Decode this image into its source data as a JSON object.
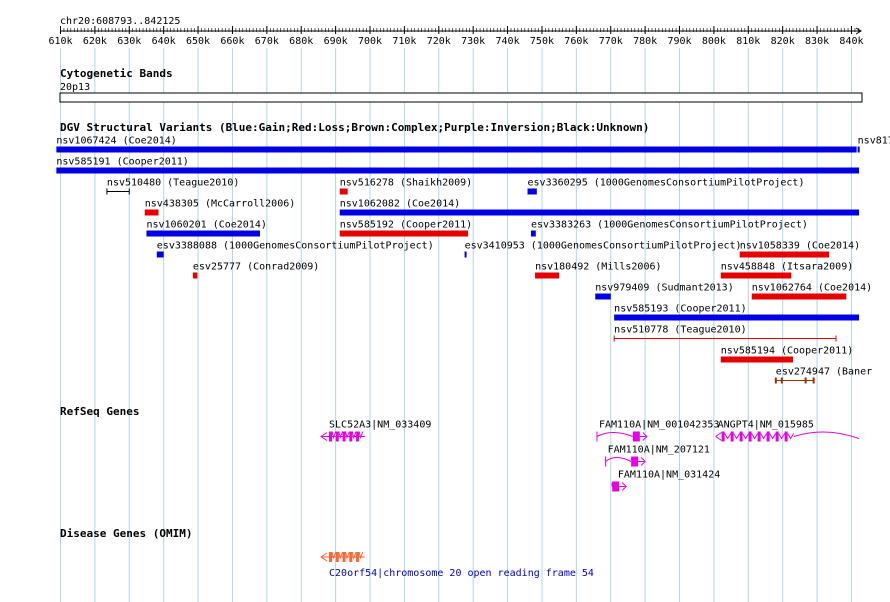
{
  "locus": "chr20:608793..842125",
  "ruler": {
    "ticks": [
      "610k",
      "620k",
      "630k",
      "640k",
      "650k",
      "660k",
      "670k",
      "680k",
      "690k",
      "700k",
      "710k",
      "720k",
      "730k",
      "740k",
      "750k",
      "760k",
      "770k",
      "780k",
      "790k",
      "800k",
      "810k",
      "820k",
      "830k",
      "840k"
    ]
  },
  "tracks": {
    "cytoband": {
      "title": "Cytogenetic Bands",
      "band": "20p13"
    },
    "dgv": {
      "title": "DGV Structural Variants (Blue:Gain;Red:Loss;Brown:Complex;Purple:Inversion;Black:Unknown)",
      "colors": {
        "gain": "#0000e6",
        "loss": "#e60000",
        "complex": "#993300",
        "unknown": "#000000"
      },
      "features": [
        {
          "label": "nsv1067424 (Coe2014)",
          "type": "gain",
          "start": 608.8,
          "end": 841.5,
          "row": 0
        },
        {
          "label": "nsv817",
          "type": "gain",
          "start": 841.8,
          "end": 842.2,
          "row": 0
        },
        {
          "label": "nsv585191 (Cooper2011)",
          "type": "gain",
          "start": 608.8,
          "end": 842.2,
          "row": 1
        },
        {
          "label": "nsv510480 (Teague2010)",
          "type": "unknown",
          "start": 623.5,
          "end": 630.0,
          "row": 2
        },
        {
          "label": "nsv516278 (Shaikh2009)",
          "type": "loss",
          "start": 691.2,
          "end": 693.5,
          "row": 2
        },
        {
          "label": "esv3360295 (1000GenomesConsortiumPilotProject)",
          "type": "gain",
          "start": 745.8,
          "end": 748.5,
          "row": 2
        },
        {
          "label": "nsv438305 (McCarroll2006)",
          "type": "loss",
          "start": 634.5,
          "end": 638.5,
          "row": 3
        },
        {
          "label": "nsv1062082 (Coe2014)",
          "type": "gain",
          "start": 691.2,
          "end": 842.2,
          "row": 3
        },
        {
          "label": "nsv1060201 (Coe2014)",
          "type": "gain",
          "start": 635.0,
          "end": 668.0,
          "row": 4
        },
        {
          "label": "nsv585192 (Cooper2011)",
          "type": "loss",
          "start": 691.2,
          "end": 728.5,
          "row": 4
        },
        {
          "label": "esv3383263 (1000GenomesConsortiumPilotProject)",
          "type": "gain",
          "start": 746.8,
          "end": 748.2,
          "row": 4
        },
        {
          "label": "esv3388088 (1000GenomesConsortiumPilotProject)",
          "type": "gain",
          "start": 638.0,
          "end": 640.0,
          "row": 5
        },
        {
          "label": "esv3410953 (1000GenomesConsortiumPilotProject)",
          "type": "gain",
          "start": 727.5,
          "end": 728.0,
          "row": 5
        },
        {
          "label": "nsv1058339 (Coe2014)",
          "type": "loss",
          "start": 807.5,
          "end": 833.5,
          "row": 5
        },
        {
          "label": "esv25777 (Conrad2009)",
          "type": "loss",
          "start": 648.5,
          "end": 649.8,
          "row": 6
        },
        {
          "label": "nsv180492 (Mills2006)",
          "type": "loss",
          "start": 748.0,
          "end": 755.0,
          "row": 6
        },
        {
          "label": "nsv458848 (Itsara2009)",
          "type": "loss",
          "start": 802.0,
          "end": 822.5,
          "row": 6
        },
        {
          "label": "nsv979409 (Sudmant2013)",
          "type": "gain",
          "start": 765.5,
          "end": 770.0,
          "row": 7
        },
        {
          "label": "nsv1062764 (Coe2014)",
          "type": "loss",
          "start": 811.0,
          "end": 838.5,
          "row": 7
        },
        {
          "label": "nsv585193 (Cooper2011)",
          "type": "gain",
          "start": 771.0,
          "end": 842.2,
          "row": 8
        },
        {
          "label": "nsv510778 (Teague2010)",
          "type": "loss_thin",
          "start": 771.0,
          "end": 835.5,
          "row": 9
        },
        {
          "label": "nsv585194 (Cooper2011)",
          "type": "loss",
          "start": 802.0,
          "end": 823.0,
          "row": 10
        },
        {
          "label": "esv274947 (Baner",
          "type": "complex",
          "start": 818.0,
          "end": 829.0,
          "row": 11
        }
      ]
    },
    "refseq": {
      "title": "RefSeq Genes",
      "color": "#e600e6",
      "genes": [
        {
          "label": "SLC52A3|NM_033409",
          "start": 687.5,
          "end": 698.5,
          "strand": "-",
          "row": 0
        },
        {
          "label": "FAM110A|NM_001042353",
          "start": 766.0,
          "end": 780.5,
          "strand": "+",
          "row": 0
        },
        {
          "label": "ANGPT4|NM_015985",
          "start": 800.5,
          "end": 842.2,
          "strand": "-",
          "row": 0
        },
        {
          "label": "FAM110A|NM_207121",
          "start": 768.5,
          "end": 780.0,
          "strand": "+",
          "row": 1
        },
        {
          "label": "FAM110A|NM_031424",
          "start": 771.5,
          "end": 774.5,
          "strand": "+",
          "row": 2
        }
      ]
    },
    "omim": {
      "title": "Disease Genes (OMIM)",
      "color": "#ff6633",
      "genes": [
        {
          "label": "C20orf54|chromosome 20 open reading frame 54",
          "start": 687.5,
          "end": 698.5,
          "strand": "-"
        }
      ]
    }
  }
}
